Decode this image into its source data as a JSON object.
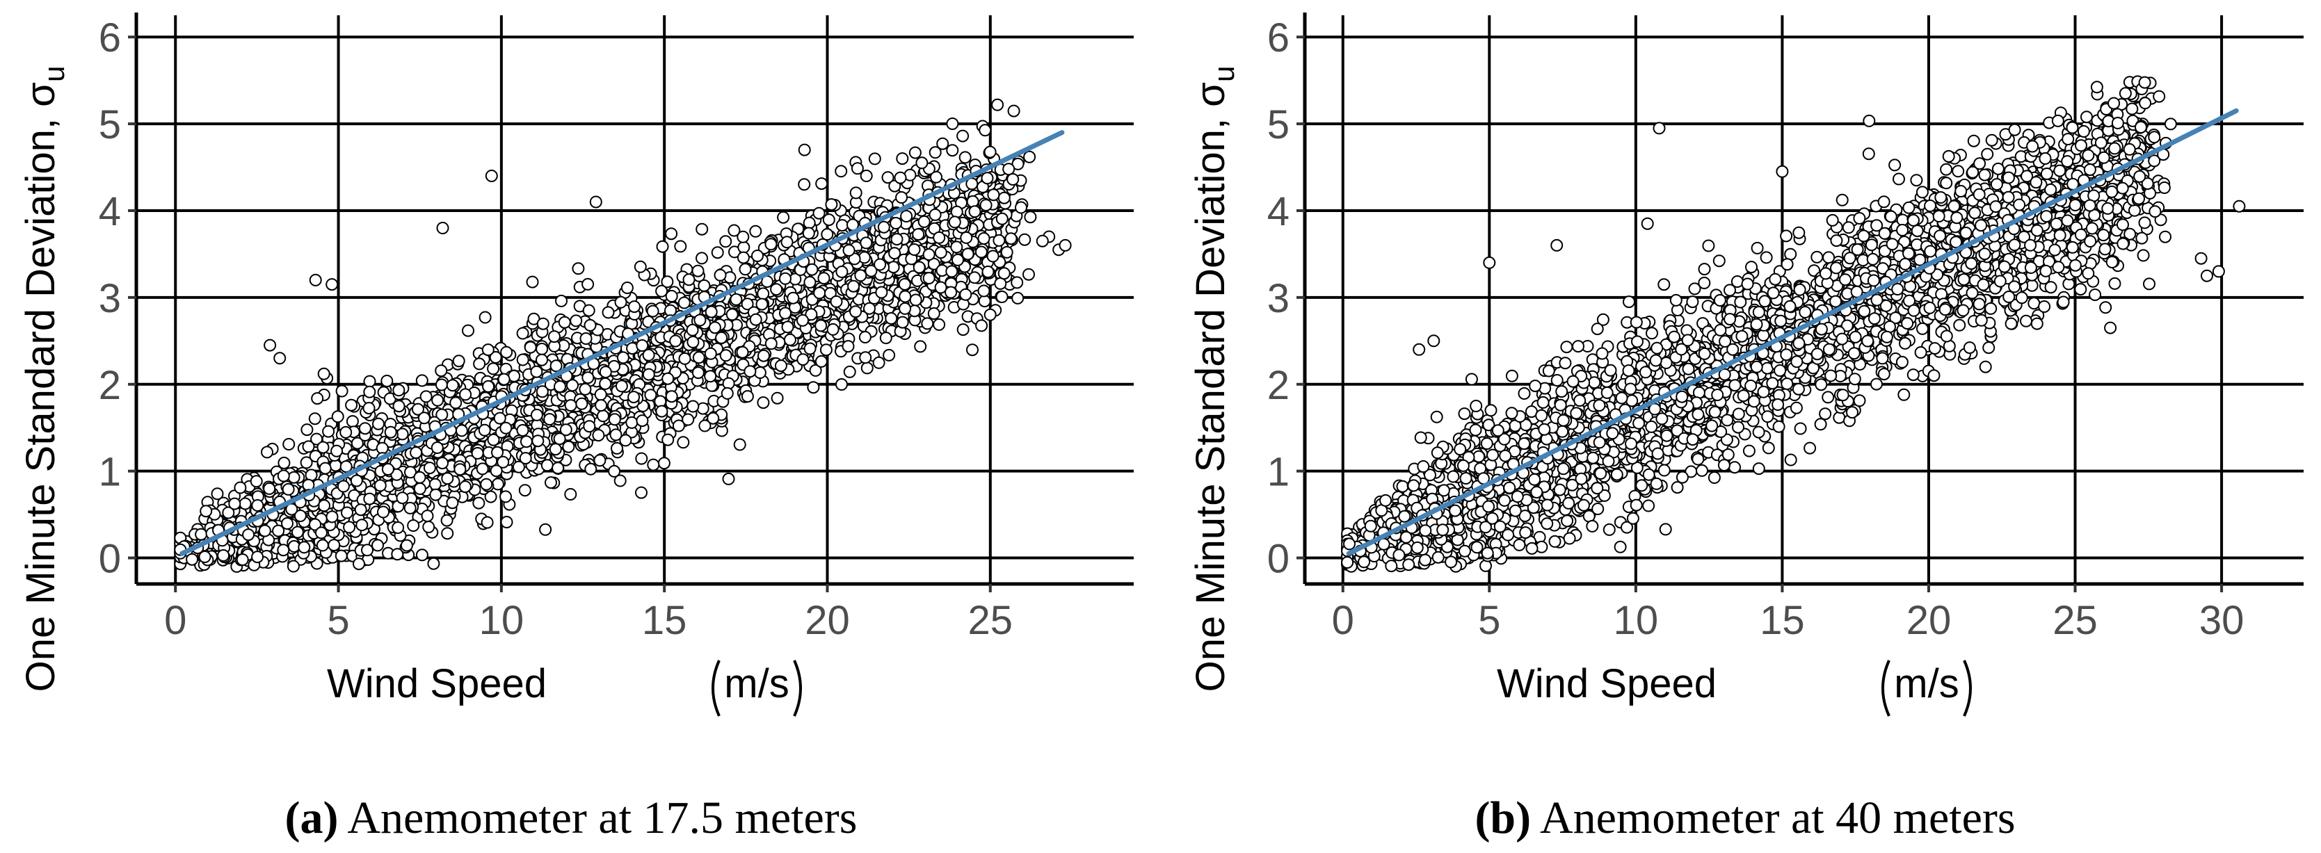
{
  "colors": {
    "fit_line": "#4682b4",
    "grid": "#000000",
    "point_fill": "#ffffff",
    "point_stroke": "#000000",
    "tick_text": "#4d4d4d"
  },
  "chart_data": [
    {
      "id": "a",
      "type": "scatter",
      "title": "",
      "xlabel": "Wind Speed",
      "xlabel_unit": "m/s",
      "ylabel": "One Minute Standard Deviation, σ",
      "ylabel_subscript": "u",
      "xlim": [
        -1.2,
        29.4
      ],
      "ylim": [
        -0.3,
        6.25
      ],
      "xticks": [
        0,
        5,
        10,
        15,
        20,
        25
      ],
      "yticks": [
        0,
        1,
        2,
        3,
        4,
        5,
        6
      ],
      "fit_line": {
        "x": [
          0.2,
          27.2
        ],
        "y": [
          0.05,
          4.9
        ]
      },
      "cloud": {
        "x_max": 25.5,
        "slope": 0.155,
        "spread": 0.48,
        "points": 3000
      },
      "outliers": [
        {
          "x": 9.7,
          "y": 4.4
        },
        {
          "x": 19.3,
          "y": 4.7
        },
        {
          "x": 22.3,
          "y": 4.6
        },
        {
          "x": 22.9,
          "y": 4.55
        },
        {
          "x": 23.8,
          "y": 4.3
        },
        {
          "x": 21.2,
          "y": 4.4
        },
        {
          "x": 12.9,
          "y": 4.1
        },
        {
          "x": 8.2,
          "y": 3.8
        },
        {
          "x": 4.3,
          "y": 3.2
        },
        {
          "x": 4.8,
          "y": 3.15
        },
        {
          "x": 26.8,
          "y": 3.7
        },
        {
          "x": 27.1,
          "y": 3.55
        },
        {
          "x": 26.6,
          "y": 3.65
        },
        {
          "x": 27.3,
          "y": 3.6
        },
        {
          "x": 2.9,
          "y": 2.45
        },
        {
          "x": 3.2,
          "y": 2.3
        }
      ],
      "caption_tag": "(a)",
      "caption": "Anemometer at 17.5 meters"
    },
    {
      "id": "b",
      "type": "scatter",
      "title": "",
      "xlabel": "Wind Speed",
      "xlabel_unit": "m/s",
      "ylabel": "One Minute Standard Deviation, σ",
      "ylabel_subscript": "u",
      "xlim": [
        -1.3,
        32.8
      ],
      "ylim": [
        -0.3,
        6.25
      ],
      "xticks": [
        0,
        5,
        10,
        15,
        20,
        25,
        30
      ],
      "yticks": [
        0,
        1,
        2,
        3,
        4,
        5,
        6
      ],
      "fit_line": {
        "x": [
          0.2,
          30.5
        ],
        "y": [
          0.05,
          5.15
        ]
      },
      "cloud": {
        "x_max": 27.5,
        "slope": 0.165,
        "spread": 0.5,
        "points": 3200
      },
      "outliers": [
        {
          "x": 10.8,
          "y": 4.95
        },
        {
          "x": 25.2,
          "y": 4.75
        },
        {
          "x": 22.0,
          "y": 4.65
        },
        {
          "x": 15.0,
          "y": 4.45
        },
        {
          "x": 10.4,
          "y": 3.85
        },
        {
          "x": 7.3,
          "y": 3.6
        },
        {
          "x": 5.0,
          "y": 3.4
        },
        {
          "x": 30.6,
          "y": 4.05
        },
        {
          "x": 29.5,
          "y": 3.25
        },
        {
          "x": 29.9,
          "y": 3.3
        },
        {
          "x": 29.3,
          "y": 3.45
        },
        {
          "x": 2.6,
          "y": 2.4
        },
        {
          "x": 3.1,
          "y": 2.5
        },
        {
          "x": 26.2,
          "y": 2.65
        }
      ],
      "caption_tag": "(b)",
      "caption": "Anemometer at 40 meters"
    }
  ]
}
